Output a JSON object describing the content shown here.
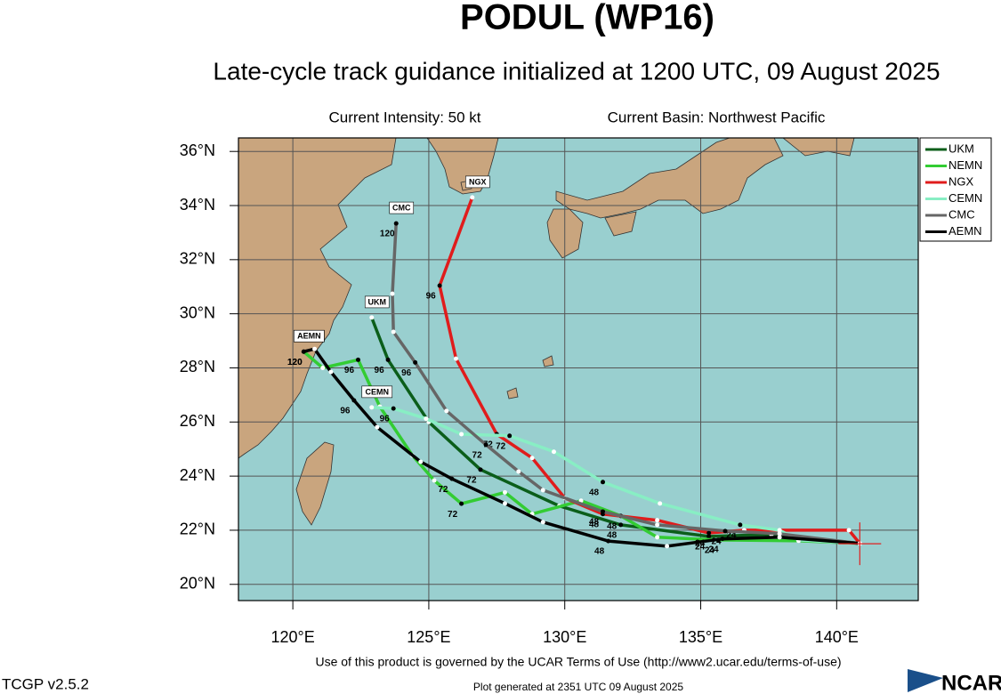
{
  "chart_data": {
    "type": "track-map",
    "title": "PODUL (WP16)",
    "subtitle": "Late-cycle track guidance initialized at 1200 UTC, 09 August 2025",
    "annotations": [
      "Current Intensity: 50 kt",
      "Current Basin: Northwest Pacific"
    ],
    "xlim": [
      118,
      143
    ],
    "ylim": [
      19.4,
      36.5
    ],
    "xticks": [
      {
        "value": 120,
        "label": "120°E"
      },
      {
        "value": 125,
        "label": "125°E"
      },
      {
        "value": 130,
        "label": "130°E"
      },
      {
        "value": 135,
        "label": "135°E"
      },
      {
        "value": 140,
        "label": "140°E"
      }
    ],
    "yticks": [
      {
        "value": 20,
        "label": "20°N"
      },
      {
        "value": 22,
        "label": "22°N"
      },
      {
        "value": 24,
        "label": "24°N"
      },
      {
        "value": 26,
        "label": "26°N"
      },
      {
        "value": 28,
        "label": "28°N"
      },
      {
        "value": 30,
        "label": "30°N"
      },
      {
        "value": 32,
        "label": "32°N"
      },
      {
        "value": 34,
        "label": "34°N"
      },
      {
        "value": 36,
        "label": "36°N"
      }
    ],
    "grid": true,
    "legend": "outside-top-right",
    "current_position": {
      "x": 140.85,
      "y": 21.5,
      "color": "#e02020"
    },
    "series": [
      {
        "name": "UKM",
        "color": "#0b5e1a",
        "x": [
          140.85,
          137.6,
          135.3,
          132.06,
          129.8,
          126.9,
          125.0,
          123.5,
          122.9
        ],
        "values": [
          21.51,
          21.84,
          21.77,
          22.2,
          22.9,
          24.24,
          26.0,
          28.3,
          29.86
        ],
        "point_labels": [
          null,
          null,
          "24",
          "48",
          null,
          "72",
          null,
          "96",
          null
        ]
      },
      {
        "name": "NEMN",
        "color": "#33cc33",
        "x": [
          140.85,
          138.6,
          135.65,
          133.4,
          132.06,
          130.6,
          128.8,
          127.8,
          126.2,
          125.2,
          124.4,
          123.2,
          122.4,
          121.1,
          120.4
        ],
        "values": [
          21.51,
          21.61,
          21.64,
          21.74,
          22.53,
          23.09,
          22.6,
          23.4,
          22.98,
          23.84,
          24.76,
          26.57,
          28.3,
          28.0,
          28.6
        ],
        "point_labels": [
          null,
          null,
          "24",
          null,
          "48",
          null,
          null,
          null,
          "72",
          null,
          null,
          null,
          "96",
          null,
          "120"
        ]
      },
      {
        "name": "NGX",
        "color": "#e01c1c",
        "x": [
          140.85,
          140.45,
          136.6,
          135.3,
          133.4,
          131.4,
          130.0,
          128.8,
          127.5,
          126.0,
          125.4,
          126.6
        ],
        "values": [
          21.51,
          22.0,
          22.0,
          21.9,
          22.37,
          22.6,
          23.19,
          24.67,
          25.55,
          28.34,
          31.04,
          34.3
        ],
        "point_labels": [
          null,
          null,
          null,
          "24",
          null,
          "48",
          null,
          null,
          "72",
          null,
          "96",
          null
        ]
      },
      {
        "name": "CEMN",
        "color": "#88eec4",
        "x": [
          140.85,
          138.6,
          137.9,
          136.45,
          133.5,
          131.4,
          129.6,
          127.97,
          126.2,
          124.9,
          123.7,
          122.9
        ],
        "values": [
          21.51,
          21.64,
          22.0,
          22.2,
          22.99,
          23.78,
          24.9,
          25.49,
          25.55,
          26.12,
          26.5,
          26.54
        ],
        "point_labels": [
          null,
          null,
          null,
          "24",
          null,
          "48",
          null,
          "72",
          null,
          null,
          "96",
          null
        ]
      },
      {
        "name": "CMC",
        "color": "#666666",
        "x": [
          140.85,
          137.9,
          135.9,
          133.4,
          131.4,
          129.2,
          128.3,
          127.1,
          125.65,
          124.5,
          123.7,
          123.66,
          123.8
        ],
        "values": [
          21.51,
          21.87,
          21.97,
          22.2,
          22.69,
          23.48,
          24.17,
          25.16,
          26.41,
          28.2,
          29.33,
          30.74,
          33.34
        ],
        "point_labels": [
          null,
          null,
          "24",
          null,
          "48",
          null,
          null,
          "72",
          null,
          "96",
          null,
          null,
          "120"
        ]
      },
      {
        "name": "AEMN",
        "color": "#000000",
        "x": [
          140.85,
          137.9,
          135.8,
          133.76,
          131.6,
          129.2,
          127.8,
          125.85,
          124.7,
          123.1,
          122.25,
          121.4,
          120.8,
          120.4
        ],
        "values": [
          21.51,
          21.74,
          21.68,
          21.41,
          21.6,
          22.3,
          22.99,
          23.9,
          24.53,
          25.81,
          26.8,
          27.85,
          28.7,
          28.6
        ],
        "point_labels": [
          null,
          null,
          "24",
          null,
          "48",
          null,
          null,
          "72",
          null,
          null,
          "96",
          null,
          null,
          "120"
        ]
      }
    ],
    "footer": "Use of this product is governed by the UCAR Terms of Use (http://www2.ucar.edu/terms-of-use)",
    "plot_generated": "Plot generated at 2351 UTC  09 August 2025"
  },
  "page": {
    "version": "TCGP v2.5.2",
    "logo": "NCAR"
  }
}
